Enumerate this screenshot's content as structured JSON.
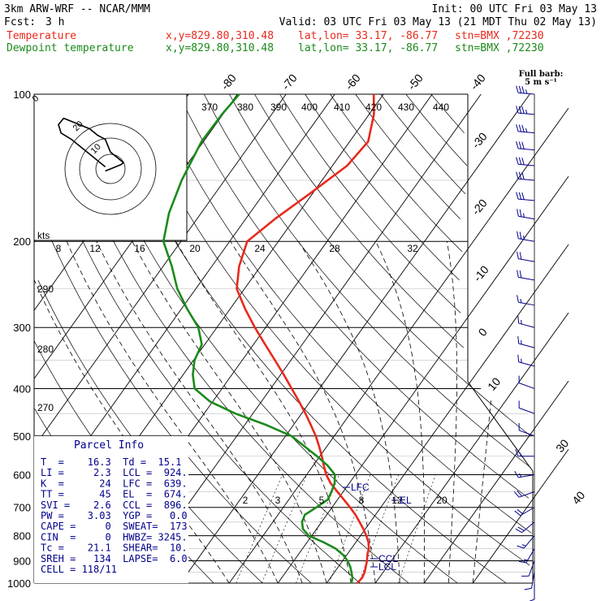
{
  "header": {
    "model": "3km ARW-WRF -- NCAR/MMM",
    "init": "Init: 00 UTC Fri 03 May 13",
    "fcst_label": "Fcst:",
    "fcst_value": "3 h",
    "valid": "Valid: 03 UTC Fri 03 May 13 (21 MDT Thu 02 May 13)",
    "temp_label": "Temperature",
    "dew_label": "Dewpoint temperature",
    "xy": "x,y=829.80,310.48",
    "latlon": "lat,lon= 33.17, -86.77",
    "stn": "stn=BMX ,72230",
    "barb_note_1": "Full barb:",
    "barb_note_2": "5 m s⁻¹"
  },
  "colors": {
    "temperature": "#e8291c",
    "dewpoint": "#1b8a1b",
    "axes": "#000000",
    "wind": "#00008b",
    "parcel_text": "#00008b"
  },
  "parcel_info": {
    "title": "Parcel Info",
    "rows": [
      "T  =    16.3  Td =  15.1",
      "LI =     2.3  LCL =  924.",
      "K  =      24  LFC =  639.",
      "TT =      45  EL  =  674.",
      "SVI =    2.6  CCL =  896.",
      "PW =    3.03  YGP =   0.0",
      "CAPE =     0  SWEAT=  173",
      "CIN  =     0  HWBZ= 3245.",
      "Tc =    21.1  SHEAR=  10.",
      "SREH =   134  LAPSE=  6.0",
      "CELL = 118/11"
    ]
  },
  "chart_data": {
    "type": "line",
    "title": "",
    "y_axis": {
      "scale": "log",
      "units": "hPa",
      "range": [
        1000,
        100
      ],
      "ticks": [
        100,
        200,
        300,
        400,
        500,
        600,
        700,
        800,
        900,
        1000
      ]
    },
    "isotherm_labels": [
      -80,
      -70,
      -60,
      -50,
      -40,
      -30,
      -20,
      -10,
      0,
      10,
      30,
      40
    ],
    "theta_labels_top": [
      370,
      380,
      390,
      400,
      410,
      420,
      430,
      440
    ],
    "theta_labels_left": [
      290,
      280,
      270
    ],
    "mixing_ratio_labels": [
      "2",
      "3",
      "5",
      "8",
      "12",
      "20"
    ],
    "hodograph": {
      "units": "kts",
      "ring_labels": [
        "10",
        "20"
      ],
      "speed_axis_labels": [
        "8",
        "12",
        "16",
        "20",
        "24",
        "28",
        "32"
      ]
    },
    "level_markers": [
      "LFC",
      "EL",
      "CCL",
      "LCL"
    ],
    "series": [
      {
        "name": "Temperature",
        "points": [
          [
            1000,
            16.3
          ],
          [
            975,
            16.5
          ],
          [
            950,
            16.2
          ],
          [
            925,
            15.6
          ],
          [
            900,
            15.0
          ],
          [
            875,
            14.2
          ],
          [
            850,
            13.6
          ],
          [
            825,
            12.6
          ],
          [
            800,
            11.2
          ],
          [
            775,
            9.6
          ],
          [
            750,
            7.8
          ],
          [
            725,
            5.9
          ],
          [
            700,
            3.7
          ],
          [
            675,
            1.3
          ],
          [
            650,
            -1.2
          ],
          [
            625,
            -3.8
          ],
          [
            600,
            -6.0
          ],
          [
            575,
            -7.8
          ],
          [
            550,
            -9.6
          ],
          [
            525,
            -11.6
          ],
          [
            500,
            -13.8
          ],
          [
            475,
            -16.4
          ],
          [
            450,
            -19.2
          ],
          [
            425,
            -22.3
          ],
          [
            400,
            -25.7
          ],
          [
            375,
            -29.3
          ],
          [
            350,
            -33.3
          ],
          [
            325,
            -37.6
          ],
          [
            300,
            -42.2
          ],
          [
            275,
            -46.9
          ],
          [
            250,
            -51.6
          ],
          [
            225,
            -54.4
          ],
          [
            200,
            -56.4
          ],
          [
            180,
            -54.0
          ],
          [
            160,
            -50.6
          ],
          [
            140,
            -47.0
          ],
          [
            125,
            -46.2
          ],
          [
            110,
            -49.0
          ],
          [
            100,
            -52.0
          ]
        ]
      },
      {
        "name": "Dewpoint temperature",
        "points": [
          [
            1000,
            15.1
          ],
          [
            975,
            14.5
          ],
          [
            950,
            13.5
          ],
          [
            925,
            12.4
          ],
          [
            900,
            11.0
          ],
          [
            875,
            9.2
          ],
          [
            850,
            6.8
          ],
          [
            825,
            3.4
          ],
          [
            800,
            -0.6
          ],
          [
            775,
            -2.8
          ],
          [
            750,
            -4.0
          ],
          [
            725,
            -4.5
          ],
          [
            700,
            -3.2
          ],
          [
            675,
            -2.0
          ],
          [
            650,
            -2.4
          ],
          [
            625,
            -3.0
          ],
          [
            600,
            -4.2
          ],
          [
            575,
            -7.0
          ],
          [
            550,
            -10.6
          ],
          [
            525,
            -14.6
          ],
          [
            500,
            -18.8
          ],
          [
            475,
            -25.5
          ],
          [
            450,
            -33.6
          ],
          [
            425,
            -40.6
          ],
          [
            400,
            -45.6
          ],
          [
            375,
            -48.0
          ],
          [
            350,
            -49.8
          ],
          [
            325,
            -50.6
          ],
          [
            300,
            -53.8
          ],
          [
            275,
            -58.8
          ],
          [
            250,
            -63.8
          ],
          [
            225,
            -68.2
          ],
          [
            200,
            -73.6
          ],
          [
            175,
            -76.6
          ],
          [
            150,
            -78.8
          ],
          [
            125,
            -80.4
          ],
          [
            110,
            -80.2
          ],
          [
            100,
            -79.6
          ]
        ]
      }
    ],
    "hodograph_trace": [
      [
        -2,
        1
      ],
      [
        -1,
        0.5
      ],
      [
        0,
        0
      ],
      [
        2,
        -1
      ],
      [
        4,
        -2
      ],
      [
        5,
        -3
      ],
      [
        3,
        -5
      ],
      [
        0,
        -8
      ],
      [
        -2,
        -14
      ],
      [
        -5,
        -16
      ],
      [
        -8,
        -19
      ],
      [
        -14,
        -22
      ],
      [
        -18,
        -24
      ],
      [
        -20,
        -21
      ],
      [
        -19,
        -17
      ],
      [
        -15,
        -14
      ],
      [
        -11,
        -10
      ],
      [
        -7,
        -6
      ],
      [
        -4,
        -3
      ],
      [
        -2,
        -1
      ]
    ],
    "wind_barbs": [
      {
        "p": 100,
        "ws": 35,
        "dir": 275
      },
      {
        "p": 110,
        "ws": 35,
        "dir": 275
      },
      {
        "p": 120,
        "ws": 35,
        "dir": 275
      },
      {
        "p": 130,
        "ws": 30,
        "dir": 275
      },
      {
        "p": 140,
        "ws": 30,
        "dir": 275
      },
      {
        "p": 150,
        "ws": 30,
        "dir": 275
      },
      {
        "p": 165,
        "ws": 30,
        "dir": 275
      },
      {
        "p": 180,
        "ws": 25,
        "dir": 280
      },
      {
        "p": 200,
        "ws": 25,
        "dir": 280
      },
      {
        "p": 220,
        "ws": 20,
        "dir": 280
      },
      {
        "p": 240,
        "ws": 20,
        "dir": 280
      },
      {
        "p": 270,
        "ws": 15,
        "dir": 280
      },
      {
        "p": 300,
        "ws": 15,
        "dir": 285
      },
      {
        "p": 330,
        "ws": 15,
        "dir": 285
      },
      {
        "p": 360,
        "ws": 15,
        "dir": 285
      },
      {
        "p": 400,
        "ws": 10,
        "dir": 290
      },
      {
        "p": 450,
        "ws": 10,
        "dir": 290
      },
      {
        "p": 500,
        "ws": 10,
        "dir": 290
      },
      {
        "p": 550,
        "ws": 15,
        "dir": 270
      },
      {
        "p": 600,
        "ws": 15,
        "dir": 260
      },
      {
        "p": 650,
        "ws": 20,
        "dir": 250
      },
      {
        "p": 700,
        "ws": 20,
        "dir": 240
      },
      {
        "p": 750,
        "ws": 20,
        "dir": 230
      },
      {
        "p": 800,
        "ws": 15,
        "dir": 220
      },
      {
        "p": 850,
        "ws": 15,
        "dir": 210
      },
      {
        "p": 900,
        "ws": 10,
        "dir": 200
      },
      {
        "p": 950,
        "ws": 10,
        "dir": 190
      },
      {
        "p": 1000,
        "ws": 10,
        "dir": 180
      }
    ]
  }
}
